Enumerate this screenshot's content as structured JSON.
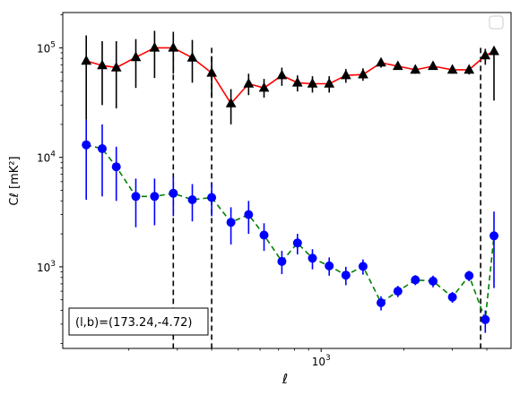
{
  "chart_data": {
    "type": "scatter",
    "xscale": "log",
    "yscale": "log",
    "xlim": [
      115,
      4900
    ],
    "ylim": [
      180,
      210000
    ],
    "xlabel": "ℓ",
    "ylabel": "Cℓ  [mK²]",
    "x_ticks": [
      {
        "value": 1000,
        "label": "10^3"
      }
    ],
    "y_ticks": [
      {
        "value": 1000,
        "label": "10^3"
      },
      {
        "value": 10000,
        "label": "10^4"
      },
      {
        "value": 100000,
        "label": "10^5"
      }
    ],
    "vlines": [
      290,
      400,
      3800
    ],
    "annotation": "(l,b)=(173.24,-4.72)",
    "legend": "top-right",
    "series": [
      {
        "marker": "triangle",
        "marker_color": "#000000",
        "line_color": "#ff0000",
        "line_style": "solid",
        "errbar_color": "#000000",
        "points": [
          {
            "x": 140,
            "y": 76000,
            "lo": 22000,
            "hi": 130000
          },
          {
            "x": 160,
            "y": 69000,
            "lo": 30000,
            "hi": 115000
          },
          {
            "x": 180,
            "y": 66000,
            "lo": 28000,
            "hi": 115000
          },
          {
            "x": 212,
            "y": 82000,
            "lo": 43000,
            "hi": 120000
          },
          {
            "x": 248,
            "y": 100000,
            "lo": 53000,
            "hi": 143000
          },
          {
            "x": 290,
            "y": 100000,
            "lo": 58000,
            "hi": 140000
          },
          {
            "x": 340,
            "y": 81000,
            "lo": 48000,
            "hi": 118000
          },
          {
            "x": 400,
            "y": 59000,
            "lo": 36000,
            "hi": 84000
          },
          {
            "x": 470,
            "y": 31000,
            "lo": 20000,
            "hi": 42000
          },
          {
            "x": 545,
            "y": 47000,
            "lo": 37000,
            "hi": 58000
          },
          {
            "x": 620,
            "y": 43000,
            "lo": 35000,
            "hi": 52000
          },
          {
            "x": 720,
            "y": 56000,
            "lo": 45000,
            "hi": 66000
          },
          {
            "x": 820,
            "y": 48000,
            "lo": 40000,
            "hi": 56000
          },
          {
            "x": 930,
            "y": 47000,
            "lo": 39000,
            "hi": 55000
          },
          {
            "x": 1070,
            "y": 47000,
            "lo": 39000,
            "hi": 55000
          },
          {
            "x": 1230,
            "y": 56000,
            "lo": 48000,
            "hi": 64000
          },
          {
            "x": 1420,
            "y": 57000,
            "lo": 50000,
            "hi": 65000
          },
          {
            "x": 1650,
            "y": 73000,
            "lo": 66000,
            "hi": 80000
          },
          {
            "x": 1900,
            "y": 68000,
            "lo": 63000,
            "hi": 74000
          },
          {
            "x": 2200,
            "y": 63000,
            "lo": 58000,
            "hi": 68000
          },
          {
            "x": 2550,
            "y": 68000,
            "lo": 63000,
            "hi": 73000
          },
          {
            "x": 3000,
            "y": 63000,
            "lo": 58000,
            "hi": 68000
          },
          {
            "x": 3450,
            "y": 63000,
            "lo": 57000,
            "hi": 69000
          },
          {
            "x": 3950,
            "y": 85000,
            "lo": 70000,
            "hi": 98000
          },
          {
            "x": 4250,
            "y": 93000,
            "lo": 33000,
            "hi": 100000
          }
        ]
      },
      {
        "marker": "circle",
        "marker_color": "#0000ff",
        "line_color": "#008000",
        "line_style": "dashed",
        "errbar_color": "#0000ff",
        "points": [
          {
            "x": 140,
            "y": 13000,
            "lo": 4100,
            "hi": 22000
          },
          {
            "x": 160,
            "y": 12000,
            "lo": 4400,
            "hi": 20000
          },
          {
            "x": 180,
            "y": 8200,
            "lo": 4000,
            "hi": 12500
          },
          {
            "x": 212,
            "y": 4400,
            "lo": 2300,
            "hi": 6400
          },
          {
            "x": 248,
            "y": 4400,
            "lo": 2400,
            "hi": 6400
          },
          {
            "x": 290,
            "y": 4700,
            "lo": 2900,
            "hi": 6600
          },
          {
            "x": 340,
            "y": 4100,
            "lo": 2600,
            "hi": 5700
          },
          {
            "x": 400,
            "y": 4300,
            "lo": 2900,
            "hi": 5800
          },
          {
            "x": 470,
            "y": 2550,
            "lo": 1600,
            "hi": 3500
          },
          {
            "x": 545,
            "y": 3000,
            "lo": 2000,
            "hi": 4000
          },
          {
            "x": 620,
            "y": 1950,
            "lo": 1400,
            "hi": 2500
          },
          {
            "x": 720,
            "y": 1120,
            "lo": 860,
            "hi": 1400
          },
          {
            "x": 820,
            "y": 1650,
            "lo": 1300,
            "hi": 2000
          },
          {
            "x": 930,
            "y": 1200,
            "lo": 950,
            "hi": 1450
          },
          {
            "x": 1070,
            "y": 1020,
            "lo": 830,
            "hi": 1220
          },
          {
            "x": 1230,
            "y": 840,
            "lo": 680,
            "hi": 1000
          },
          {
            "x": 1420,
            "y": 1010,
            "lo": 850,
            "hi": 1170
          },
          {
            "x": 1650,
            "y": 470,
            "lo": 400,
            "hi": 540
          },
          {
            "x": 1900,
            "y": 600,
            "lo": 530,
            "hi": 670
          },
          {
            "x": 2200,
            "y": 760,
            "lo": 680,
            "hi": 840
          },
          {
            "x": 2550,
            "y": 740,
            "lo": 650,
            "hi": 830
          },
          {
            "x": 3000,
            "y": 530,
            "lo": 470,
            "hi": 590
          },
          {
            "x": 3450,
            "y": 830,
            "lo": 740,
            "hi": 920
          },
          {
            "x": 3950,
            "y": 330,
            "lo": 250,
            "hi": 400
          },
          {
            "x": 4250,
            "y": 1920,
            "lo": 640,
            "hi": 3200
          }
        ]
      }
    ]
  }
}
